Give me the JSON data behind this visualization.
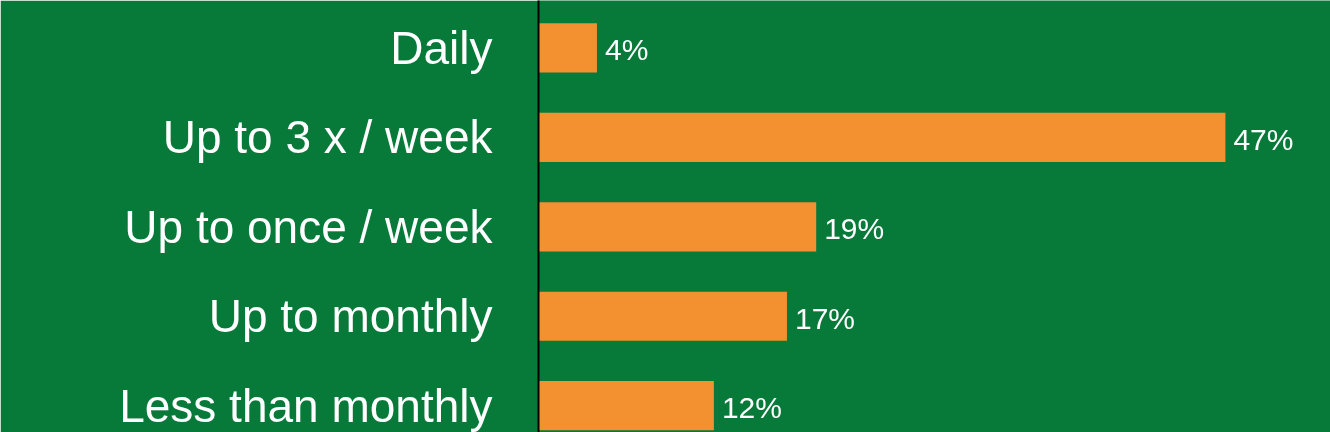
{
  "chart_data": {
    "type": "bar",
    "orientation": "horizontal",
    "categories": [
      "Daily",
      "Up to 3 x / week",
      "Up to once / week",
      "Up to monthly",
      "Less than monthly"
    ],
    "values": [
      4,
      47,
      19,
      17,
      12
    ],
    "value_labels": [
      "4%",
      "47%",
      "19%",
      "17%",
      "12%"
    ],
    "color": "#f39131",
    "grid": false
  }
}
